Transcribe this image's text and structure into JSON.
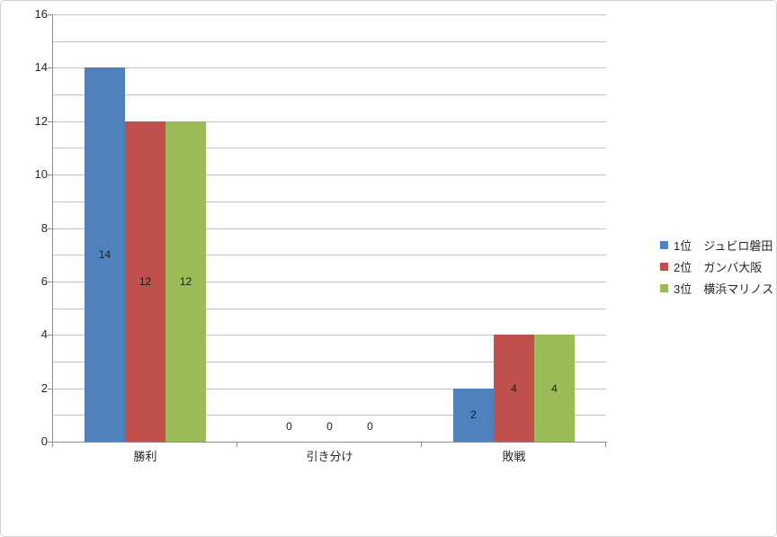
{
  "chart_data": {
    "type": "bar",
    "title": "",
    "xlabel": "",
    "ylabel": "",
    "categories": [
      "勝利",
      "引き分け",
      "敗戦"
    ],
    "series": [
      {
        "name": "1位　ジュビロ磐田",
        "color": "#4F81BD",
        "values": [
          14,
          0,
          2
        ]
      },
      {
        "name": "2位　ガンバ大阪",
        "color": "#C0504D",
        "values": [
          12,
          0,
          4
        ]
      },
      {
        "name": "3位　横浜マリノス",
        "color": "#9BBB59",
        "values": [
          12,
          0,
          4
        ]
      }
    ],
    "ylim": [
      0,
      16
    ],
    "y_tick_interval": 2,
    "y_tick_labels": [
      "0",
      "2",
      "4",
      "6",
      "8",
      "10",
      "12",
      "14",
      "16"
    ],
    "gridline_interval": 1,
    "grid": true,
    "data_labels": {
      "show": true,
      "position": "inside-center"
    },
    "legend": {
      "position": "right",
      "entries": [
        "1位　ジュビロ磐田",
        "2位　ガンバ大阪",
        "3位　横浜マリノス"
      ]
    },
    "colors": {
      "gridline": "#C3C3C3",
      "axis": "#8C8C8C",
      "text": "#262626",
      "background": "#FFFFFF",
      "border": "#D2D2D2"
    }
  }
}
